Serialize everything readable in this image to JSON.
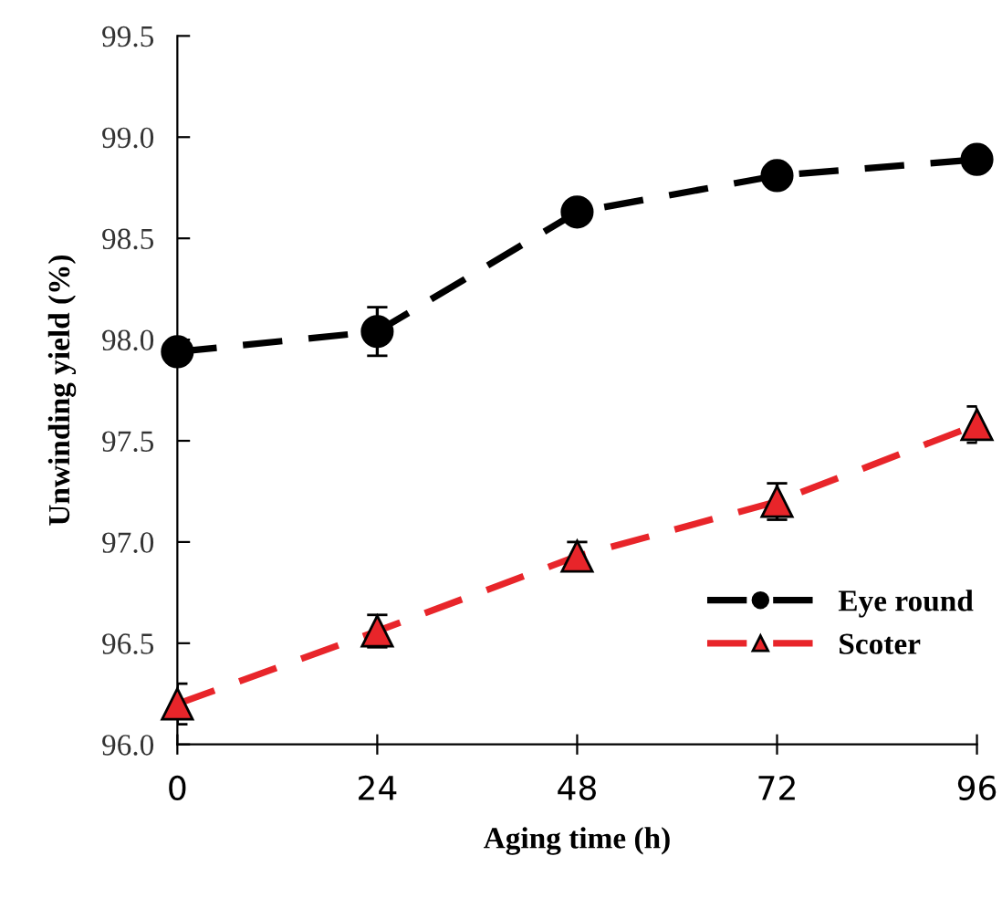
{
  "chart_data": {
    "type": "line",
    "xlabel": "Aging time (h)",
    "ylabel": "Unwinding yield (%)",
    "x": [
      0,
      24,
      48,
      72,
      96
    ],
    "series": [
      {
        "name": "Eye round",
        "color": "#000000",
        "marker": "circle",
        "values": [
          97.94,
          98.04,
          98.63,
          98.81,
          98.89
        ],
        "errors": [
          0.03,
          0.12,
          0.04,
          0.04,
          0.04
        ]
      },
      {
        "name": "Scoter",
        "color": "#e8252a",
        "marker": "triangle",
        "values": [
          96.2,
          96.56,
          96.93,
          97.2,
          97.58
        ],
        "errors": [
          0.1,
          0.08,
          0.07,
          0.09,
          0.09
        ]
      }
    ],
    "xlim": [
      0,
      96
    ],
    "xticks": [
      0,
      24,
      48,
      72,
      96
    ],
    "ylim": [
      96.0,
      99.5
    ],
    "yticks": [
      {
        "value": 96.0,
        "label": "96.0"
      },
      {
        "value": 96.5,
        "label": "96.5"
      },
      {
        "value": 97.0,
        "label": "97.0"
      },
      {
        "value": 97.5,
        "label": "97.5"
      },
      {
        "value": 98.0,
        "label": "98.0"
      },
      {
        "value": 98.5,
        "label": "98.5"
      },
      {
        "value": 99.0,
        "label": "99.0"
      },
      {
        "value": 99.5,
        "label": "99.5"
      }
    ],
    "line_style": "dashed",
    "grid": false,
    "legend": "bottom right"
  }
}
